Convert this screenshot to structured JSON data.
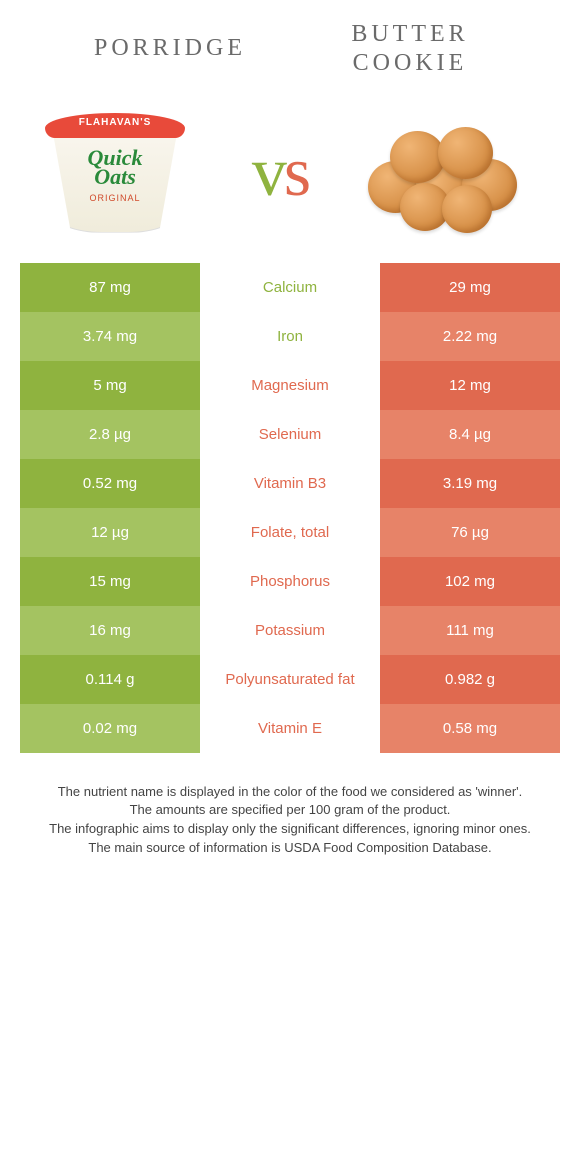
{
  "header": {
    "left_title": "Porridge",
    "right_title": "butter cookie",
    "left_brand_top": "FLAHAVAN'S",
    "left_brand_mid1": "Quick",
    "left_brand_mid2": "Oats",
    "left_brand_bottom": "ORIGINAL"
  },
  "colors": {
    "green_dark": "#8fb33f",
    "green_light": "#a4c361",
    "orange_dark": "#e0694f",
    "orange_light": "#e78368"
  },
  "rows": [
    {
      "left": "87 mg",
      "label": "Calcium",
      "right": "29 mg",
      "winner": "left"
    },
    {
      "left": "3.74 mg",
      "label": "Iron",
      "right": "2.22 mg",
      "winner": "left"
    },
    {
      "left": "5 mg",
      "label": "Magnesium",
      "right": "12 mg",
      "winner": "right"
    },
    {
      "left": "2.8 µg",
      "label": "Selenium",
      "right": "8.4 µg",
      "winner": "right"
    },
    {
      "left": "0.52 mg",
      "label": "Vitamin B3",
      "right": "3.19 mg",
      "winner": "right"
    },
    {
      "left": "12 µg",
      "label": "Folate, total",
      "right": "76 µg",
      "winner": "right"
    },
    {
      "left": "15 mg",
      "label": "Phosphorus",
      "right": "102 mg",
      "winner": "right"
    },
    {
      "left": "16 mg",
      "label": "Potassium",
      "right": "111 mg",
      "winner": "right"
    },
    {
      "left": "0.114 g",
      "label": "Polyunsaturated fat",
      "right": "0.982 g",
      "winner": "right"
    },
    {
      "left": "0.02 mg",
      "label": "Vitamin E",
      "right": "0.58 mg",
      "winner": "right"
    }
  ],
  "footnotes": [
    "The nutrient name is displayed in the color of the food we considered as 'winner'.",
    "The amounts are specified per 100 gram of the product.",
    "The infographic aims to display only the significant differences, ignoring minor ones.",
    "The main source of information is USDA Food Composition Database."
  ]
}
